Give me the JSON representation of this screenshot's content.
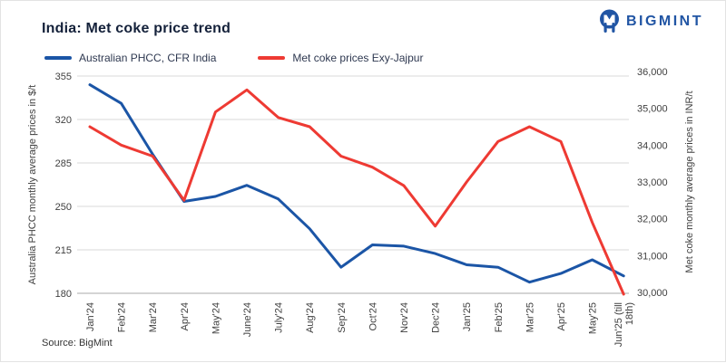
{
  "header": {
    "title": "India: Met coke price trend",
    "logo_text": "BIGMINT",
    "logo_color": "#2155a4"
  },
  "legend": [
    {
      "label": "Australian PHCC, CFR India",
      "color": "#1b55a6"
    },
    {
      "label": "Met coke prices Exy-Jajpur",
      "color": "#ee3a33"
    }
  ],
  "source": "Source: BigMint",
  "chart_data": {
    "type": "line",
    "title": "India: Met coke price trend",
    "categories": [
      "Jan'24",
      "Feb'24",
      "Mar'24",
      "Apr'24",
      "May'24",
      "June'24",
      "July'24",
      "Aug'24",
      "Sep'24",
      "Oct'24",
      "Nov'24",
      "Dec'24",
      "Jan'25",
      "Feb'25",
      "Mar'25",
      "Apr'25",
      "May'25",
      "Jun'25 (till 18th)"
    ],
    "series": [
      {
        "name": "Australian PHCC, CFR India",
        "axis": "left",
        "color": "#1b55a6",
        "values": [
          348,
          333,
          292,
          254,
          258,
          267,
          256,
          232,
          201,
          219,
          218,
          212,
          203,
          201,
          189,
          196,
          207,
          194
        ]
      },
      {
        "name": "Met coke prices Exy-Jajpur",
        "axis": "right",
        "color": "#ee3a33",
        "values": [
          34500,
          34000,
          33700,
          32500,
          34900,
          35500,
          34750,
          34500,
          33700,
          33400,
          32900,
          31800,
          33000,
          34100,
          34500,
          34100,
          31900,
          29950
        ]
      }
    ],
    "left_axis": {
      "label": "Australia PHCC monthly average prices in $/t",
      "ticks": [
        355,
        320,
        285,
        250,
        215,
        180
      ],
      "min": 180,
      "max": 355
    },
    "right_axis": {
      "label": "Met coke monthly average prices in INR/t",
      "ticks": [
        "36,000",
        "35,000",
        "34,000",
        "33,000",
        "32,000",
        "31,000",
        "30,000"
      ],
      "min": 30000,
      "max": 36000
    },
    "grid": true,
    "legend_position": "top"
  }
}
